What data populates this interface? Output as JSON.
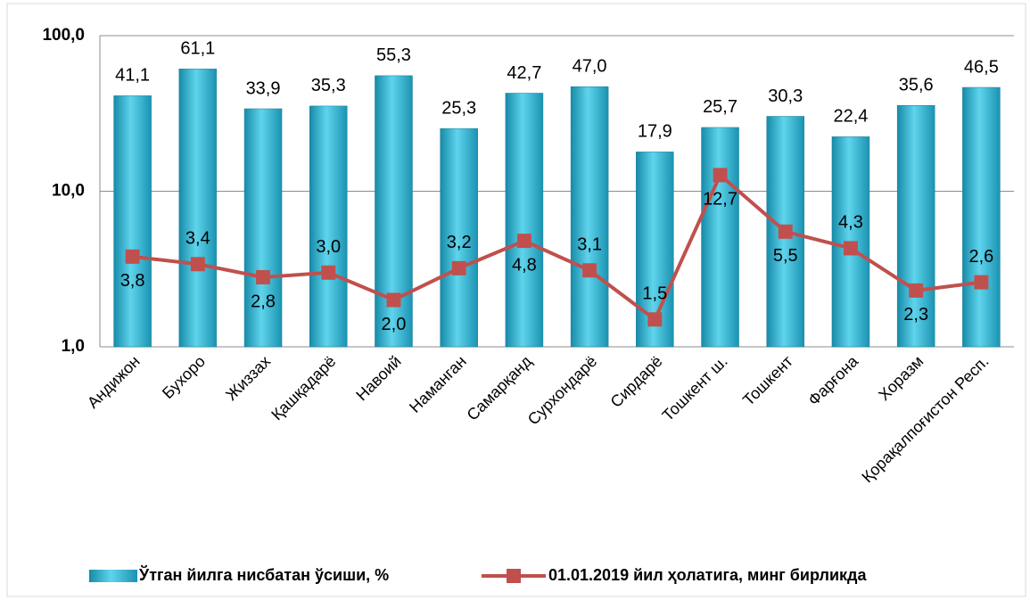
{
  "chart_data": {
    "type": "bar-line",
    "categories": [
      "Андижон",
      "Бухоро",
      "Жиззах",
      "Қашқадарё",
      "Навоий",
      "Наманган",
      "Самарқанд",
      "Сурхондарё",
      "Сирдарё",
      "Тошкент ш.",
      "Тошкент",
      "Фарғона",
      "Хоразм",
      "Қорақалпоғистон Респ."
    ],
    "series": [
      {
        "name": "Ўтган йилга нисбатан ўсиши, %",
        "color": "#2aa8c6",
        "values": [
          41.1,
          61.1,
          33.9,
          35.3,
          55.3,
          25.3,
          42.7,
          47.0,
          17.9,
          25.7,
          30.3,
          22.4,
          35.6,
          46.5
        ],
        "value_labels": [
          "41,1",
          "61,1",
          "33,9",
          "35,3",
          "55,3",
          "25,3",
          "42,7",
          "47,0",
          "17,9",
          "25,7",
          "30,3",
          "22,4",
          "35,6",
          "46,5"
        ]
      },
      {
        "name": "01.01.2019 йил ҳолатига, минг бирликда",
        "color": "#c0504d",
        "values": [
          3.8,
          3.4,
          2.8,
          3.0,
          2.0,
          3.2,
          4.8,
          3.1,
          1.5,
          12.7,
          5.5,
          4.3,
          2.3,
          2.6
        ],
        "value_labels": [
          "3,8",
          "3,4",
          "2,8",
          "3,0",
          "2,0",
          "3,2",
          "4,8",
          "3,1",
          "1,5",
          "12,7",
          "5,5",
          "4,3",
          "2,3",
          "2,6"
        ]
      }
    ],
    "log_scale": true,
    "ylim": [
      1,
      100
    ],
    "yticks": [
      {
        "value": 1,
        "label": "1,0"
      },
      {
        "value": 10,
        "label": "10,0"
      },
      {
        "value": 100,
        "label": "100,0"
      }
    ],
    "grid": true,
    "legend": "bottom"
  }
}
